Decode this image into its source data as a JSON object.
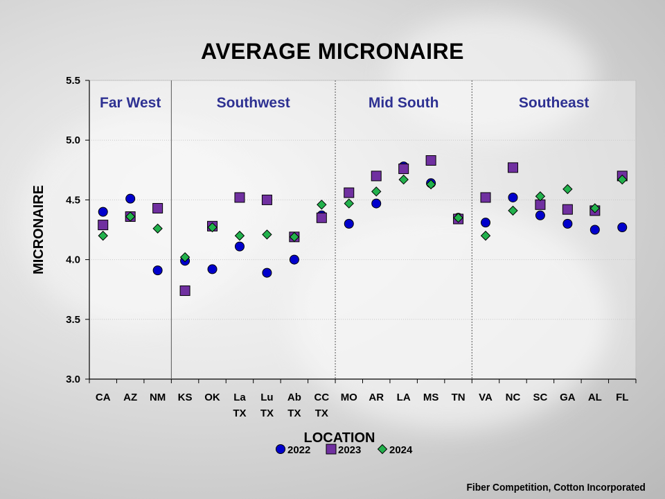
{
  "chart_data": {
    "type": "scatter",
    "title": "AVERAGE MICRONAIRE",
    "xlabel": "LOCATION",
    "ylabel": "MICRONAIRE",
    "ylim": [
      3.0,
      5.5
    ],
    "yticks": [
      "3.0",
      "3.5",
      "4.0",
      "4.5",
      "5.0",
      "5.5"
    ],
    "categories": [
      [
        "CA"
      ],
      [
        "AZ"
      ],
      [
        "NM"
      ],
      [
        "KS"
      ],
      [
        "OK"
      ],
      [
        "La",
        "TX"
      ],
      [
        "Lu",
        "TX"
      ],
      [
        "Ab",
        "TX"
      ],
      [
        "CC",
        "TX"
      ],
      [
        "MO"
      ],
      [
        "AR"
      ],
      [
        "LA"
      ],
      [
        "MS"
      ],
      [
        "TN"
      ],
      [
        "VA"
      ],
      [
        "NC"
      ],
      [
        "SC"
      ],
      [
        "GA"
      ],
      [
        "AL"
      ],
      [
        "FL"
      ]
    ],
    "regions": [
      {
        "name": "Far West",
        "start": 0,
        "end": 2
      },
      {
        "name": "Southwest",
        "start": 3,
        "end": 8
      },
      {
        "name": "Mid South",
        "start": 9,
        "end": 13
      },
      {
        "name": "Southeast",
        "start": 14,
        "end": 19
      }
    ],
    "region_color": "#2e3192",
    "series": [
      {
        "name": "2022",
        "marker": "circle",
        "color": "#0000cc",
        "values": [
          4.4,
          4.51,
          3.91,
          3.99,
          3.92,
          4.11,
          3.89,
          4.0,
          4.37,
          4.3,
          4.47,
          4.78,
          4.64,
          4.35,
          4.31,
          4.52,
          4.37,
          4.3,
          4.25,
          4.27
        ]
      },
      {
        "name": "2023",
        "marker": "square",
        "color": "#7030a0",
        "values": [
          4.29,
          4.36,
          4.43,
          3.74,
          4.28,
          4.52,
          4.5,
          4.19,
          4.35,
          4.56,
          4.7,
          4.76,
          4.83,
          4.34,
          4.52,
          4.77,
          4.46,
          4.42,
          4.41,
          4.7
        ]
      },
      {
        "name": "2024",
        "marker": "diamond",
        "color": "#22b14c",
        "values": [
          4.2,
          4.36,
          4.26,
          4.02,
          4.27,
          4.2,
          4.21,
          4.19,
          4.46,
          4.47,
          4.57,
          4.67,
          4.63,
          4.35,
          4.2,
          4.41,
          4.53,
          4.59,
          4.43,
          4.67
        ]
      }
    ],
    "grid": true,
    "legend": "bottom-center"
  },
  "credit": "Fiber Competition, Cotton Incorporated"
}
